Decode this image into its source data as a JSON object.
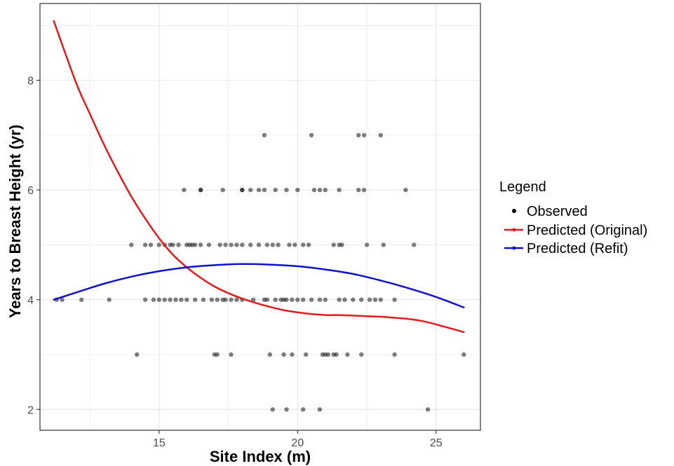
{
  "chart_data": {
    "type": "scatter",
    "xlabel": "Site Index (m)",
    "ylabel": "Years to Breast Height (yr)",
    "xlim": [
      10.7,
      26.6
    ],
    "ylim": [
      1.62,
      9.4
    ],
    "xticks": [
      15,
      20,
      25
    ],
    "yticks": [
      2,
      4,
      6,
      8
    ],
    "grid": true,
    "legend": {
      "title": "Legend",
      "placement": "right",
      "entries": [
        "Observed",
        "Predicted (Original)",
        "Predicted (Refit)"
      ]
    },
    "colors": {
      "observed": "#000000",
      "original": "#e41a1c",
      "refit": "#0f12c8",
      "grid": "#ebebeb"
    },
    "observed": {
      "name": "Observed",
      "points": [
        [
          18.8,
          7
        ],
        [
          20.5,
          7
        ],
        [
          22.2,
          7
        ],
        [
          22.4,
          7
        ],
        [
          23.0,
          7
        ],
        [
          15.9,
          6
        ],
        [
          16.5,
          6
        ],
        [
          16.5,
          6
        ],
        [
          17.3,
          6
        ],
        [
          18.0,
          6
        ],
        [
          18.0,
          6
        ],
        [
          18.3,
          6
        ],
        [
          18.6,
          6
        ],
        [
          18.8,
          6
        ],
        [
          19.2,
          6
        ],
        [
          19.6,
          6
        ],
        [
          20.0,
          6
        ],
        [
          20.6,
          6
        ],
        [
          20.8,
          6
        ],
        [
          21.0,
          6
        ],
        [
          21.5,
          6
        ],
        [
          22.2,
          6
        ],
        [
          22.4,
          6
        ],
        [
          23.9,
          6
        ],
        [
          14.0,
          5
        ],
        [
          14.5,
          5
        ],
        [
          14.7,
          5
        ],
        [
          15.0,
          5
        ],
        [
          15.2,
          5
        ],
        [
          15.4,
          5
        ],
        [
          15.5,
          5
        ],
        [
          15.7,
          5
        ],
        [
          16.0,
          5
        ],
        [
          16.1,
          5
        ],
        [
          16.2,
          5
        ],
        [
          16.3,
          5
        ],
        [
          16.5,
          5
        ],
        [
          16.8,
          5
        ],
        [
          17.2,
          5
        ],
        [
          17.4,
          5
        ],
        [
          17.6,
          5
        ],
        [
          17.8,
          5
        ],
        [
          18.0,
          5
        ],
        [
          18.3,
          5
        ],
        [
          18.6,
          5
        ],
        [
          18.9,
          5
        ],
        [
          19.1,
          5
        ],
        [
          19.3,
          5
        ],
        [
          19.7,
          5
        ],
        [
          19.9,
          5
        ],
        [
          20.2,
          5
        ],
        [
          20.4,
          5
        ],
        [
          21.3,
          5
        ],
        [
          21.5,
          5
        ],
        [
          21.6,
          5
        ],
        [
          22.5,
          5
        ],
        [
          23.1,
          5
        ],
        [
          24.2,
          5
        ],
        [
          11.3,
          4
        ],
        [
          11.5,
          4
        ],
        [
          12.2,
          4
        ],
        [
          13.2,
          4
        ],
        [
          14.5,
          4
        ],
        [
          14.8,
          4
        ],
        [
          15.0,
          4
        ],
        [
          15.2,
          4
        ],
        [
          15.4,
          4
        ],
        [
          15.6,
          4
        ],
        [
          15.8,
          4
        ],
        [
          16.0,
          4
        ],
        [
          16.3,
          4
        ],
        [
          16.6,
          4
        ],
        [
          16.9,
          4
        ],
        [
          17.1,
          4
        ],
        [
          17.3,
          4
        ],
        [
          17.4,
          4
        ],
        [
          17.6,
          4
        ],
        [
          17.8,
          4
        ],
        [
          18.0,
          4
        ],
        [
          18.4,
          4
        ],
        [
          18.8,
          4
        ],
        [
          18.9,
          4
        ],
        [
          19.2,
          4
        ],
        [
          19.4,
          4
        ],
        [
          19.5,
          4
        ],
        [
          19.6,
          4
        ],
        [
          19.8,
          4
        ],
        [
          20.0,
          4
        ],
        [
          20.2,
          4
        ],
        [
          20.5,
          4
        ],
        [
          20.8,
          4
        ],
        [
          21.0,
          4
        ],
        [
          21.5,
          4
        ],
        [
          21.7,
          4
        ],
        [
          22.0,
          4
        ],
        [
          22.3,
          4
        ],
        [
          22.6,
          4
        ],
        [
          22.8,
          4
        ],
        [
          23.0,
          4
        ],
        [
          23.5,
          4
        ],
        [
          14.2,
          3
        ],
        [
          17.0,
          3
        ],
        [
          17.1,
          3
        ],
        [
          17.6,
          3
        ],
        [
          19.0,
          3
        ],
        [
          19.5,
          3
        ],
        [
          19.8,
          3
        ],
        [
          20.3,
          3
        ],
        [
          20.9,
          3
        ],
        [
          21.0,
          3
        ],
        [
          21.1,
          3
        ],
        [
          21.3,
          3
        ],
        [
          21.4,
          3
        ],
        [
          21.8,
          3
        ],
        [
          22.3,
          3
        ],
        [
          23.5,
          3
        ],
        [
          26.0,
          3
        ],
        [
          19.1,
          2
        ],
        [
          19.6,
          2
        ],
        [
          20.2,
          2
        ],
        [
          20.8,
          2
        ],
        [
          24.7,
          2
        ]
      ]
    },
    "series": [
      {
        "name": "Predicted (Original)",
        "points": [
          [
            11.2,
            9.08
          ],
          [
            12.0,
            7.96
          ],
          [
            12.5,
            7.39
          ],
          [
            13.0,
            6.84
          ],
          [
            13.5,
            6.34
          ],
          [
            14.0,
            5.88
          ],
          [
            14.5,
            5.48
          ],
          [
            15.0,
            5.12
          ],
          [
            15.5,
            4.82
          ],
          [
            16.0,
            4.59
          ],
          [
            16.5,
            4.4
          ],
          [
            17.0,
            4.24
          ],
          [
            17.5,
            4.12
          ],
          [
            18.0,
            4.02
          ],
          [
            18.5,
            3.94
          ],
          [
            19.0,
            3.87
          ],
          [
            19.5,
            3.81
          ],
          [
            20.0,
            3.77
          ],
          [
            20.5,
            3.74
          ],
          [
            21.0,
            3.72
          ],
          [
            21.5,
            3.72
          ],
          [
            22.0,
            3.71
          ],
          [
            22.5,
            3.7
          ],
          [
            23.0,
            3.69
          ],
          [
            23.5,
            3.67
          ],
          [
            24.0,
            3.65
          ],
          [
            24.5,
            3.61
          ],
          [
            25.0,
            3.55
          ],
          [
            25.5,
            3.48
          ],
          [
            26.0,
            3.41
          ]
        ]
      },
      {
        "name": "Predicted (Refit)",
        "points": [
          [
            11.2,
            4.0
          ],
          [
            12.0,
            4.13
          ],
          [
            13.0,
            4.29
          ],
          [
            14.0,
            4.42
          ],
          [
            15.0,
            4.52
          ],
          [
            16.0,
            4.59
          ],
          [
            17.0,
            4.63
          ],
          [
            18.0,
            4.65
          ],
          [
            19.0,
            4.64
          ],
          [
            20.0,
            4.61
          ],
          [
            21.0,
            4.55
          ],
          [
            22.0,
            4.47
          ],
          [
            23.0,
            4.35
          ],
          [
            24.0,
            4.21
          ],
          [
            25.0,
            4.05
          ],
          [
            26.0,
            3.86
          ]
        ]
      }
    ]
  }
}
